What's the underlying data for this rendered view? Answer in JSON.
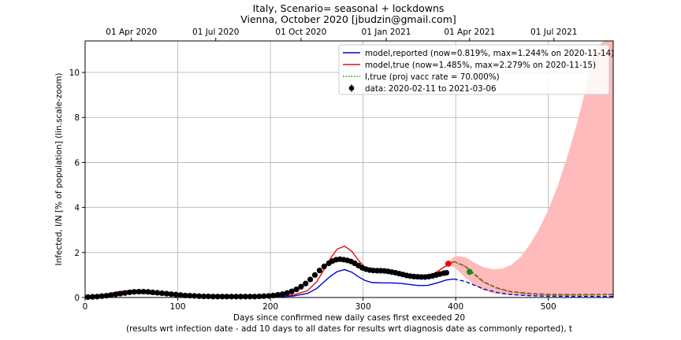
{
  "chart_data": {
    "type": "line",
    "title": "Italy, Scenario= seasonal + lockdowns",
    "subtitle": "Vienna, October 2020 [jbudzin@gmail.com]",
    "xlabel": "Days since confirmed new daily cases first exceeded 20",
    "xlabel2": "(results wrt infection date - add 10 days to all dates for results wrt diagnosis date as commonly reported), t",
    "ylabel": "Infected, I/N [% of population] (lin.scale-zoom)",
    "xlim": [
      0,
      570
    ],
    "ylim": [
      0,
      11.4
    ],
    "x_ticks": [
      0,
      100,
      200,
      300,
      400,
      500
    ],
    "y_ticks": [
      0,
      2,
      4,
      6,
      8,
      10
    ],
    "top_axis_ticks": [
      {
        "x": 50,
        "label": "01 Apr 2020"
      },
      {
        "x": 141,
        "label": "01 Jul 2020"
      },
      {
        "x": 233,
        "label": "01 Oct 2020"
      },
      {
        "x": 325,
        "label": "01 Jan 2021"
      },
      {
        "x": 415,
        "label": "01 Apr 2021"
      },
      {
        "x": 506,
        "label": "01 Jul 2021"
      }
    ],
    "grid": true,
    "legend_position": "top-right",
    "legend": [
      {
        "label": "model,reported (now=0.819%, max=1.244% on 2020-11-14)",
        "color": "#0000cc",
        "style": "solid"
      },
      {
        "label": "model,true (now=1.485%, max=2.279% on 2020-11-15)",
        "color": "#dd1111",
        "style": "solid"
      },
      {
        "label": "I,true (proj vacc rate = 70.000%)",
        "color": "#119911",
        "style": "dotted"
      },
      {
        "label": "data: 2020-02-11 to 2021-03-06",
        "color": "#000000",
        "style": "marker"
      }
    ],
    "series": [
      {
        "name": "model,reported",
        "color": "#0000cc",
        "x": [
          0,
          20,
          35,
          50,
          65,
          80,
          100,
          130,
          160,
          190,
          210,
          225,
          240,
          250,
          258,
          265,
          272,
          280,
          288,
          295,
          302,
          310,
          320,
          330,
          340,
          350,
          360,
          370,
          380,
          390,
          398
        ],
        "y": [
          0.02,
          0.08,
          0.16,
          0.2,
          0.18,
          0.13,
          0.07,
          0.03,
          0.02,
          0.02,
          0.03,
          0.07,
          0.18,
          0.4,
          0.7,
          0.95,
          1.15,
          1.24,
          1.12,
          0.92,
          0.76,
          0.66,
          0.65,
          0.65,
          0.63,
          0.58,
          0.53,
          0.54,
          0.65,
          0.78,
          0.82
        ]
      },
      {
        "name": "model,reported (projection)",
        "color": "#0000cc",
        "dashed": true,
        "x": [
          398,
          410,
          420,
          430,
          445,
          460,
          480,
          500,
          530,
          570
        ],
        "y": [
          0.82,
          0.72,
          0.55,
          0.38,
          0.22,
          0.13,
          0.08,
          0.06,
          0.05,
          0.05
        ]
      },
      {
        "name": "model,true",
        "color": "#dd1111",
        "x": [
          0,
          20,
          35,
          50,
          65,
          80,
          100,
          130,
          160,
          190,
          210,
          225,
          240,
          250,
          258,
          265,
          272,
          280,
          288,
          295,
          302,
          310,
          320,
          330,
          340,
          350,
          360,
          370,
          380,
          390,
          398
        ],
        "y": [
          0.03,
          0.12,
          0.25,
          0.32,
          0.28,
          0.2,
          0.11,
          0.05,
          0.03,
          0.03,
          0.05,
          0.12,
          0.3,
          0.7,
          1.25,
          1.75,
          2.15,
          2.28,
          2.05,
          1.65,
          1.35,
          1.18,
          1.15,
          1.13,
          1.08,
          0.98,
          0.9,
          0.93,
          1.15,
          1.42,
          1.6
        ]
      },
      {
        "name": "model,true (projection)",
        "color": "#dd1111",
        "dashed": true,
        "x": [
          398,
          410,
          420,
          430,
          445,
          460,
          480,
          500,
          530,
          570
        ],
        "y": [
          1.6,
          1.4,
          1.05,
          0.7,
          0.42,
          0.26,
          0.18,
          0.14,
          0.13,
          0.14
        ]
      },
      {
        "name": "I,true",
        "color": "#119911",
        "dotted": true,
        "x": [
          398,
          410,
          420,
          430,
          445,
          460,
          480,
          500,
          530,
          570
        ],
        "y": [
          1.6,
          1.38,
          1.02,
          0.68,
          0.4,
          0.24,
          0.16,
          0.12,
          0.11,
          0.12
        ]
      }
    ],
    "uncertainty_band": {
      "color": "#ffbbbb",
      "x": [
        390,
        400,
        410,
        420,
        430,
        440,
        450,
        460,
        470,
        480,
        490,
        500,
        510,
        520,
        530,
        540,
        550,
        560,
        570
      ],
      "upper": [
        1.55,
        1.85,
        1.8,
        1.55,
        1.35,
        1.25,
        1.28,
        1.45,
        1.8,
        2.35,
        3.05,
        3.9,
        4.95,
        6.2,
        7.6,
        9.2,
        11.0,
        11.4,
        11.4
      ],
      "lower": [
        1.5,
        1.3,
        0.9,
        0.55,
        0.32,
        0.2,
        0.14,
        0.1,
        0.08,
        0.07,
        0.07,
        0.07,
        0.07,
        0.07,
        0.07,
        0.08,
        0.08,
        0.09,
        0.1
      ]
    },
    "data_points": {
      "x": [
        3,
        8,
        13,
        18,
        23,
        28,
        33,
        38,
        43,
        48,
        53,
        58,
        63,
        68,
        73,
        78,
        83,
        88,
        93,
        98,
        103,
        108,
        113,
        118,
        123,
        128,
        133,
        138,
        143,
        148,
        153,
        158,
        163,
        168,
        173,
        178,
        183,
        188,
        193,
        198,
        203,
        208,
        213,
        218,
        223,
        228,
        233,
        238,
        243,
        248,
        253,
        258,
        263,
        267,
        271,
        275,
        279,
        283,
        287,
        291,
        295,
        299,
        303,
        307,
        311,
        315,
        319,
        323,
        327,
        331,
        335,
        339,
        343,
        347,
        351,
        355,
        359,
        363,
        367,
        371,
        375,
        379,
        383,
        387,
        390
      ],
      "y": [
        0.02,
        0.03,
        0.04,
        0.06,
        0.08,
        0.11,
        0.14,
        0.17,
        0.2,
        0.23,
        0.25,
        0.26,
        0.26,
        0.25,
        0.23,
        0.21,
        0.19,
        0.17,
        0.15,
        0.13,
        0.11,
        0.09,
        0.08,
        0.07,
        0.06,
        0.05,
        0.05,
        0.04,
        0.04,
        0.04,
        0.04,
        0.04,
        0.04,
        0.04,
        0.04,
        0.04,
        0.04,
        0.05,
        0.06,
        0.07,
        0.09,
        0.12,
        0.15,
        0.2,
        0.27,
        0.36,
        0.48,
        0.62,
        0.8,
        1.0,
        1.2,
        1.38,
        1.52,
        1.62,
        1.68,
        1.7,
        1.68,
        1.65,
        1.6,
        1.52,
        1.42,
        1.32,
        1.26,
        1.22,
        1.2,
        1.19,
        1.19,
        1.18,
        1.16,
        1.13,
        1.1,
        1.06,
        1.02,
        0.98,
        0.95,
        0.93,
        0.92,
        0.91,
        0.91,
        0.93,
        0.96,
        1.0,
        1.04,
        1.08,
        1.1
      ]
    },
    "highlight_points": [
      {
        "x": 392,
        "y": 1.5,
        "color": "#ee0000"
      },
      {
        "x": 415,
        "y": 1.14,
        "color": "#118811"
      }
    ]
  }
}
